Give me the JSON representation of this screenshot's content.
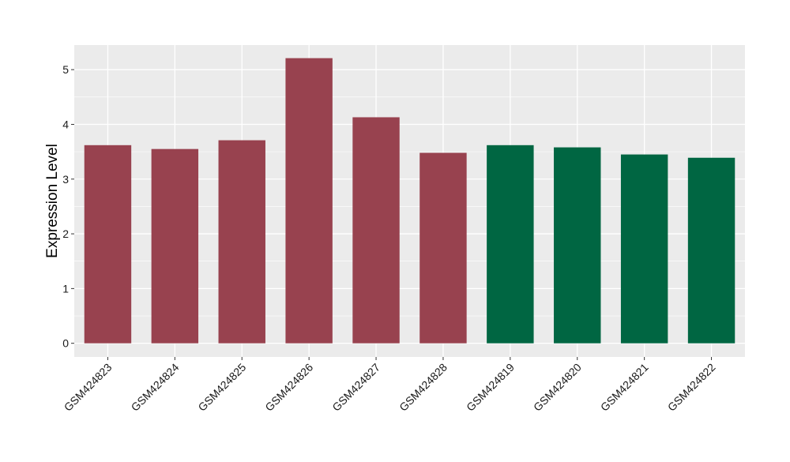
{
  "chart_data": {
    "type": "bar",
    "title": "",
    "xlabel": "",
    "ylabel": "Expression Level",
    "ylim": [
      -0.25,
      5.45
    ],
    "yticks": [
      0,
      1,
      2,
      3,
      4,
      5
    ],
    "grid": true,
    "categories": [
      "GSM424823",
      "GSM424824",
      "GSM424825",
      "GSM424826",
      "GSM424827",
      "GSM424828",
      "GSM424819",
      "GSM424820",
      "GSM424821",
      "GSM424822"
    ],
    "values": [
      3.62,
      3.55,
      3.71,
      5.21,
      4.13,
      3.48,
      3.62,
      3.58,
      3.45,
      3.39
    ],
    "bar_colors": [
      "#98424f",
      "#98424f",
      "#98424f",
      "#98424f",
      "#98424f",
      "#98424f",
      "#006642",
      "#006642",
      "#006642",
      "#006642"
    ],
    "panel_background": "#ebebeb",
    "grid_color": "#ffffff"
  }
}
